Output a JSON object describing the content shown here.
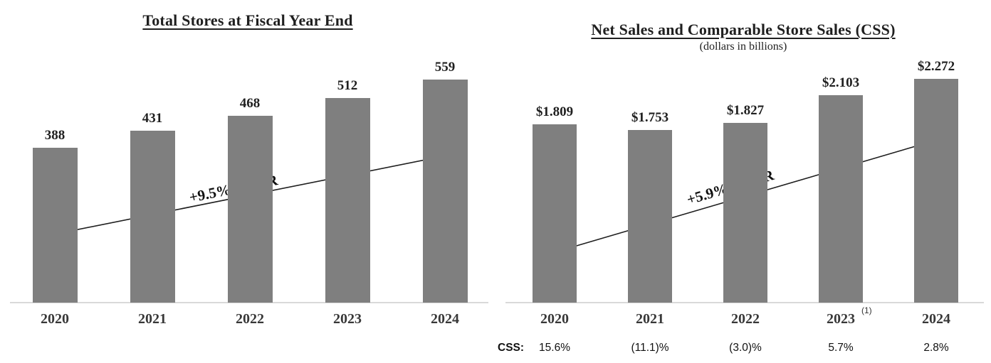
{
  "chart_data": [
    {
      "type": "bar",
      "title": "Total Stores at Fiscal Year End",
      "subtitle": "",
      "categories": [
        "2020",
        "2021",
        "2022",
        "2023",
        "2024"
      ],
      "values": [
        388,
        431,
        468,
        512,
        559
      ],
      "bar_labels": [
        "388",
        "431",
        "468",
        "512",
        "559"
      ],
      "footnotes": [
        "",
        "",
        "",
        "",
        ""
      ],
      "annotation": "+9.5% CAGR",
      "xlabel": "",
      "ylabel": "",
      "ylim": [
        0,
        559
      ],
      "grid": false,
      "legend_position": "none",
      "bar_color": "#7f7f7f",
      "axis_color": "#d9d9d9"
    },
    {
      "type": "bar",
      "title": "Net Sales and Comparable Store Sales (CSS)",
      "subtitle": "(dollars in billions)",
      "categories": [
        "2020",
        "2021",
        "2022",
        "2023",
        "2024"
      ],
      "values": [
        1.809,
        1.753,
        1.827,
        2.103,
        2.272
      ],
      "bar_labels": [
        "$1.809",
        "$1.753",
        "$1.827",
        "$2.103",
        "$2.272"
      ],
      "footnotes": [
        "",
        "",
        "",
        "(1)",
        ""
      ],
      "annotation": "+5.9% CAGR",
      "xlabel": "",
      "ylabel": "",
      "ylim": [
        0,
        2.272
      ],
      "grid": false,
      "legend_position": "none",
      "bar_color": "#7f7f7f",
      "axis_color": "#d9d9d9",
      "css_row": {
        "label": "CSS:",
        "values": [
          "15.6%",
          "(11.1)%",
          "(3.0)%",
          "5.7%",
          "2.8%"
        ]
      }
    }
  ]
}
